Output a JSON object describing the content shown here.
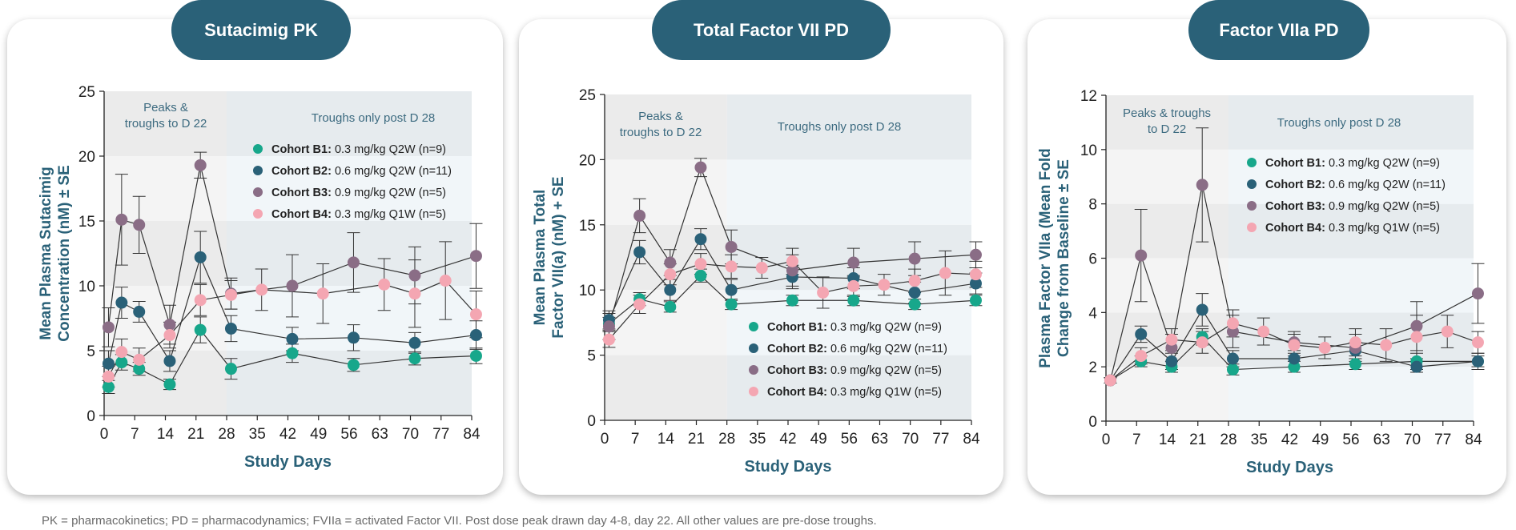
{
  "colors": {
    "accent": "#2a6178",
    "cohort_b1": "#17a78b",
    "cohort_b2": "#2a6178",
    "cohort_b3": "#8a6d86",
    "cohort_b4": "#f4a6b2"
  },
  "footnote": "PK = pharmacokinetics; PD = pharmacodynamics; FVIIa = activated Factor VII. Post dose peak drawn day 4-8, day 22. All other values are pre-dose troughs.",
  "panels": [
    {
      "tab_title": "Sutacimig PK"
    },
    {
      "tab_title": "Total Factor VII PD"
    },
    {
      "tab_title": "Factor VIIa PD"
    }
  ],
  "chart_data": [
    {
      "type": "line",
      "title": "Sutacimig PK",
      "xlabel": "Study Days",
      "ylabel": [
        "Mean Plasma Sutacimig",
        "Concentration (nM) ± SE"
      ],
      "xlim": [
        0,
        84
      ],
      "ylim": [
        0,
        25
      ],
      "x_ticks": [
        0,
        7,
        14,
        21,
        28,
        35,
        42,
        49,
        56,
        63,
        70,
        77,
        84
      ],
      "y_ticks": [
        0,
        5,
        10,
        15,
        20,
        25
      ],
      "annotations": {
        "early_region": [
          "Peaks &",
          "troughs to D 22"
        ],
        "late_region": [
          "Troughs only post D 28"
        ]
      },
      "legend_position": "top-right",
      "series": [
        {
          "name": "Cohort B1:",
          "detail": "0.3 mg/kg Q2W (n=9)",
          "color": "#17a78b",
          "x": [
            1,
            4,
            8,
            15,
            22,
            29,
            43,
            57,
            71,
            85
          ],
          "y": [
            2.2,
            4.1,
            3.6,
            2.4,
            6.6,
            3.6,
            4.8,
            3.9,
            4.4,
            4.6
          ],
          "err": [
            0.5,
            0.6,
            0.5,
            0.4,
            1.0,
            0.8,
            0.7,
            0.5,
            0.5,
            0.6
          ]
        },
        {
          "name": "Cohort B2:",
          "detail": "0.6 mg/kg Q2W (n=11)",
          "color": "#2a6178",
          "x": [
            1,
            4,
            8,
            15,
            22,
            29,
            43,
            57,
            71,
            85
          ],
          "y": [
            4.0,
            8.7,
            8.0,
            4.2,
            12.2,
            6.7,
            5.9,
            6.0,
            5.6,
            6.2
          ],
          "err": [
            1.0,
            1.2,
            0.8,
            0.8,
            2.0,
            1.0,
            0.9,
            1.0,
            0.8,
            1.1
          ]
        },
        {
          "name": "Cohort B3:",
          "detail": "0.9 mg/kg Q2W (n=5)",
          "color": "#8a6d86",
          "x": [
            1,
            4,
            8,
            15,
            22,
            29,
            43,
            57,
            71,
            85
          ],
          "y": [
            6.8,
            15.1,
            14.7,
            7.0,
            19.3,
            9.4,
            10.0,
            11.8,
            10.8,
            12.3
          ],
          "err": [
            1.5,
            3.5,
            2.2,
            1.5,
            1.0,
            1.2,
            2.4,
            2.3,
            2.2,
            2.5
          ]
        },
        {
          "name": "Cohort B4:",
          "detail": "0.3 mg/kg Q1W (n=5)",
          "color": "#f4a6b2",
          "x": [
            1,
            4,
            8,
            15,
            22,
            29,
            36,
            50,
            64,
            71,
            78,
            85
          ],
          "y": [
            3.0,
            4.9,
            4.3,
            6.2,
            8.9,
            9.3,
            9.7,
            9.4,
            10.1,
            9.4,
            10.4,
            7.8
          ],
          "err": [
            0.8,
            1.0,
            0.9,
            1.0,
            1.2,
            1.1,
            1.6,
            2.3,
            2.0,
            2.6,
            3.0,
            1.8
          ]
        }
      ]
    },
    {
      "type": "line",
      "title": "Total Factor VII PD",
      "xlabel": "Study Days",
      "ylabel": [
        "Mean Plasma Total",
        "Factor VII(a) (nM) + SE"
      ],
      "xlim": [
        0,
        84
      ],
      "ylim": [
        0,
        25
      ],
      "x_ticks": [
        0,
        7,
        14,
        21,
        28,
        35,
        42,
        49,
        56,
        63,
        70,
        77,
        84
      ],
      "y_ticks": [
        0,
        5,
        10,
        15,
        20,
        25
      ],
      "annotations": {
        "early_region": [
          "Peaks &",
          "troughs to D 22"
        ],
        "late_region": [
          "Troughs only post D 28"
        ]
      },
      "legend_position": "bottom-right",
      "series": [
        {
          "name": "Cohort B1:",
          "detail": "0.3 mg/kg Q2W (n=9)",
          "color": "#17a78b",
          "x": [
            1,
            8,
            15,
            22,
            29,
            43,
            57,
            71,
            85
          ],
          "y": [
            7.4,
            9.3,
            8.7,
            11.1,
            8.9,
            9.2,
            9.2,
            8.9,
            9.2
          ],
          "err": [
            0.5,
            0.5,
            0.4,
            0.5,
            0.4,
            0.4,
            0.4,
            0.4,
            0.4
          ]
        },
        {
          "name": "Cohort B2:",
          "detail": "0.6 mg/kg Q2W (n=11)",
          "color": "#2a6178",
          "x": [
            1,
            8,
            15,
            22,
            29,
            43,
            57,
            71,
            85
          ],
          "y": [
            7.7,
            12.9,
            10.0,
            13.9,
            10.0,
            11.0,
            10.9,
            9.8,
            10.5
          ],
          "err": [
            0.7,
            0.9,
            0.8,
            0.8,
            0.8,
            0.9,
            0.8,
            0.8,
            0.8
          ]
        },
        {
          "name": "Cohort B3:",
          "detail": "0.9 mg/kg Q2W (n=5)",
          "color": "#8a6d86",
          "x": [
            1,
            8,
            15,
            22,
            29,
            43,
            57,
            71,
            85
          ],
          "y": [
            7.2,
            15.7,
            12.1,
            19.4,
            13.3,
            11.5,
            12.1,
            12.4,
            12.7
          ],
          "err": [
            1.0,
            1.3,
            1.0,
            0.7,
            1.3,
            1.2,
            1.1,
            1.3,
            1.0
          ]
        },
        {
          "name": "Cohort B4:",
          "detail": "0.3 mg/kg Q1W (n=5)",
          "color": "#f4a6b2",
          "x": [
            1,
            8,
            15,
            22,
            29,
            36,
            43,
            50,
            57,
            64,
            71,
            78,
            85
          ],
          "y": [
            6.2,
            8.9,
            11.2,
            12.0,
            11.8,
            11.7,
            12.2,
            9.8,
            10.3,
            10.4,
            10.7,
            11.3,
            11.2
          ],
          "err": [
            0.6,
            0.7,
            0.8,
            0.8,
            0.9,
            0.8,
            1.0,
            1.2,
            0.8,
            0.8,
            0.9,
            1.7,
            1.0
          ]
        }
      ]
    },
    {
      "type": "line",
      "title": "Factor VIIa PD",
      "xlabel": "Study Days",
      "ylabel": [
        "Plasma Factor VIIa (Mean Fold",
        "Change from Baseline ± SE"
      ],
      "xlim": [
        0,
        84
      ],
      "ylim": [
        0,
        12
      ],
      "x_ticks": [
        0,
        7,
        14,
        21,
        28,
        35,
        42,
        49,
        56,
        63,
        70,
        77,
        84
      ],
      "y_ticks": [
        0,
        2,
        4,
        6,
        8,
        10,
        12
      ],
      "annotations": {
        "early_region": [
          "Peaks & troughs",
          "to D 22"
        ],
        "late_region": [
          "Troughs only post D 28"
        ]
      },
      "legend_position": "top-right",
      "series": [
        {
          "name": "Cohort B1:",
          "detail": "0.3 mg/kg Q2W (n=9)",
          "color": "#17a78b",
          "x": [
            1,
            8,
            15,
            22,
            29,
            43,
            57,
            71,
            85
          ],
          "y": [
            1.5,
            2.2,
            2.0,
            3.1,
            1.9,
            2.0,
            2.1,
            2.2,
            2.2
          ],
          "err": [
            0.1,
            0.2,
            0.2,
            0.3,
            0.2,
            0.2,
            0.2,
            0.3,
            0.2
          ]
        },
        {
          "name": "Cohort B2:",
          "detail": "0.6 mg/kg Q2W (n=11)",
          "color": "#2a6178",
          "x": [
            1,
            8,
            15,
            22,
            29,
            43,
            57,
            71,
            85
          ],
          "y": [
            1.5,
            3.2,
            2.2,
            4.1,
            2.3,
            2.3,
            2.6,
            2.0,
            2.2
          ],
          "err": [
            0.1,
            0.3,
            0.3,
            0.6,
            0.3,
            0.3,
            0.3,
            0.2,
            0.3
          ]
        },
        {
          "name": "Cohort B3:",
          "detail": "0.9 mg/kg Q2W (n=5)",
          "color": "#8a6d86",
          "x": [
            1,
            8,
            15,
            22,
            29,
            43,
            57,
            71,
            85
          ],
          "y": [
            1.5,
            6.1,
            2.7,
            8.7,
            3.3,
            2.9,
            2.7,
            3.5,
            4.7
          ],
          "err": [
            0.1,
            1.7,
            0.5,
            2.1,
            0.6,
            0.4,
            0.5,
            0.9,
            1.1
          ]
        },
        {
          "name": "Cohort B4:",
          "detail": "0.3 mg/kg Q1W (n=5)",
          "color": "#f4a6b2",
          "x": [
            1,
            8,
            15,
            22,
            29,
            36,
            43,
            50,
            57,
            64,
            71,
            78,
            85
          ],
          "y": [
            1.5,
            2.4,
            3.0,
            2.9,
            3.6,
            3.3,
            2.8,
            2.7,
            2.9,
            2.8,
            3.1,
            3.3,
            2.9
          ],
          "err": [
            0.1,
            0.3,
            0.4,
            0.4,
            0.5,
            0.5,
            0.4,
            0.4,
            0.5,
            0.6,
            0.8,
            0.6,
            0.4
          ]
        }
      ]
    }
  ]
}
